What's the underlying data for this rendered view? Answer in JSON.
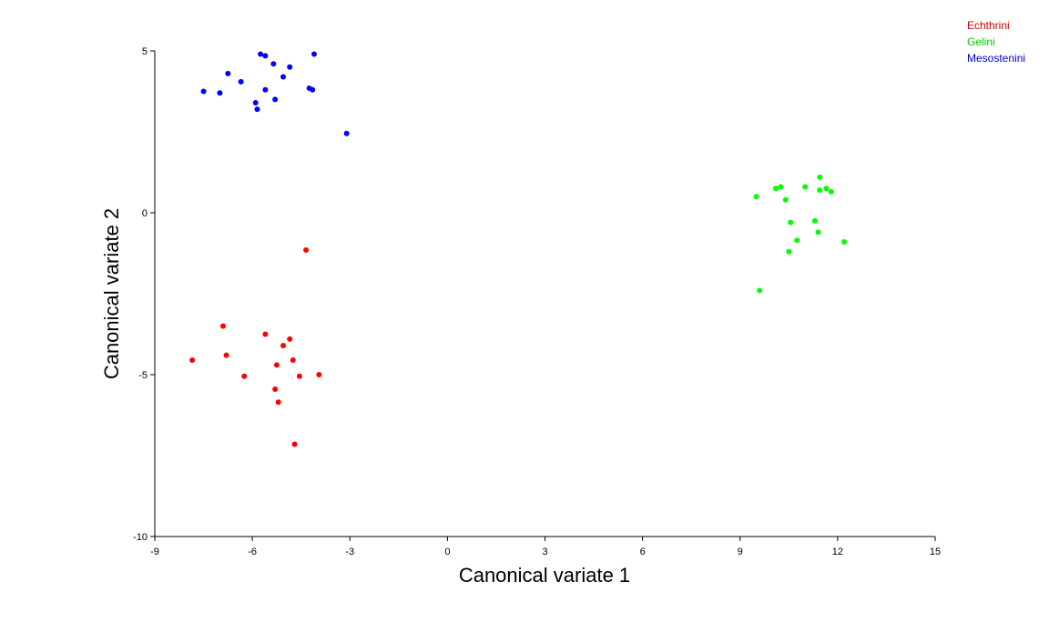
{
  "chart_data": {
    "type": "scatter",
    "xlabel": "Canonical variate 1",
    "ylabel": "Canonical variate 2",
    "xlim": [
      -9,
      15
    ],
    "ylim": [
      -10,
      5
    ],
    "xticks": [
      -9,
      -6,
      -3,
      0,
      3,
      6,
      9,
      12,
      15
    ],
    "yticks": [
      -10,
      -5,
      0,
      5
    ],
    "xtick_labels": [
      "-9",
      "-6",
      "-3",
      "0",
      "3",
      "6",
      "9",
      "12",
      "15"
    ],
    "ytick_labels": [
      "-10",
      "-5",
      "0",
      "5"
    ],
    "grid": false,
    "legend_position": "top-right",
    "series": [
      {
        "name": "Echthrini",
        "color": "#ff0000",
        "legend_color": "#cc0000",
        "points": [
          [
            -4.35,
            -1.15
          ],
          [
            -6.9,
            -3.5
          ],
          [
            -5.6,
            -3.75
          ],
          [
            -4.85,
            -3.9
          ],
          [
            -5.05,
            -4.1
          ],
          [
            -6.8,
            -4.4
          ],
          [
            -7.85,
            -4.55
          ],
          [
            -4.75,
            -4.55
          ],
          [
            -5.25,
            -4.7
          ],
          [
            -6.25,
            -5.05
          ],
          [
            -4.55,
            -5.05
          ],
          [
            -3.95,
            -5.0
          ],
          [
            -5.3,
            -5.45
          ],
          [
            -5.2,
            -5.85
          ],
          [
            -4.7,
            -7.15
          ]
        ]
      },
      {
        "name": "Gelini",
        "color": "#00ff00",
        "legend_color": "#00cc00",
        "points": [
          [
            11.45,
            1.1
          ],
          [
            10.1,
            0.75
          ],
          [
            10.25,
            0.8
          ],
          [
            11.0,
            0.8
          ],
          [
            11.65,
            0.75
          ],
          [
            11.45,
            0.7
          ],
          [
            11.8,
            0.65
          ],
          [
            9.5,
            0.5
          ],
          [
            10.4,
            0.4
          ],
          [
            10.55,
            -0.3
          ],
          [
            11.3,
            -0.25
          ],
          [
            11.4,
            -0.6
          ],
          [
            10.75,
            -0.85
          ],
          [
            12.2,
            -0.9
          ],
          [
            10.5,
            -1.2
          ],
          [
            9.6,
            -2.4
          ]
        ]
      },
      {
        "name": "Mesostenini",
        "color": "#0000ff",
        "legend_color": "#0000cc",
        "points": [
          [
            -5.75,
            4.9
          ],
          [
            -5.6,
            4.85
          ],
          [
            -4.1,
            4.9
          ],
          [
            -5.35,
            4.6
          ],
          [
            -4.85,
            4.5
          ],
          [
            -6.75,
            4.3
          ],
          [
            -5.05,
            4.2
          ],
          [
            -6.35,
            4.05
          ],
          [
            -4.25,
            3.85
          ],
          [
            -4.15,
            3.8
          ],
          [
            -5.6,
            3.8
          ],
          [
            -7.5,
            3.75
          ],
          [
            -7.0,
            3.7
          ],
          [
            -5.3,
            3.5
          ],
          [
            -5.9,
            3.4
          ],
          [
            -5.85,
            3.2
          ],
          [
            -3.1,
            2.45
          ]
        ]
      }
    ]
  }
}
